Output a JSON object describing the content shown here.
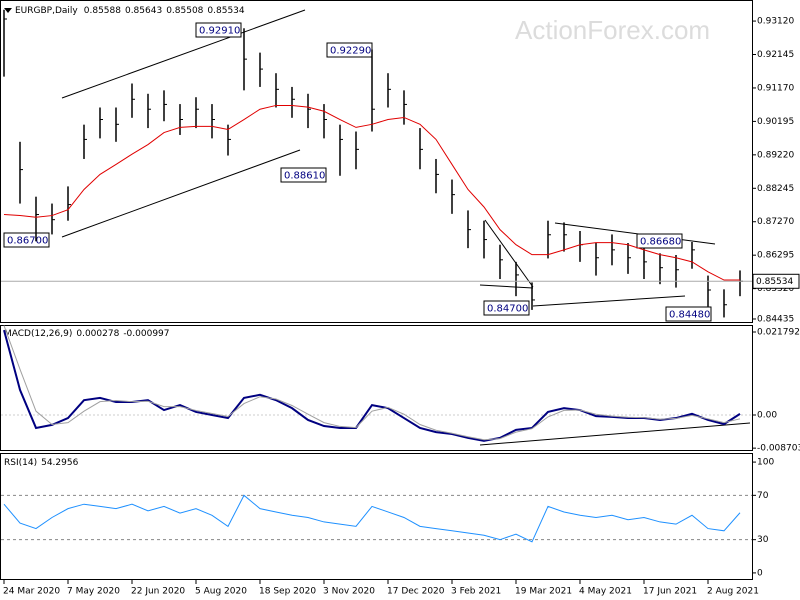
{
  "chart_data": [
    {
      "type": "ohlc",
      "title": "EURGBP,Daily",
      "last_bar": {
        "open": 0.85588,
        "high": 0.85643,
        "low": 0.85508,
        "close": 0.85534
      },
      "watermark": "ActionForex.com",
      "categories": [
        "24 Mar 2020",
        null,
        null,
        null,
        "7 May 2020",
        null,
        null,
        null,
        "22 Jun 2020",
        null,
        null,
        null,
        "5 Aug 2020",
        null,
        null,
        null,
        "18 Sep 2020",
        null,
        null,
        null,
        "3 Nov 2020",
        null,
        null,
        null,
        "17 Dec 2020",
        null,
        null,
        null,
        "3 Feb 2021",
        null,
        null,
        null,
        "19 Mar 2021",
        null,
        null,
        null,
        "4 May 2021",
        null,
        null,
        null,
        "17 Jun 2021",
        null,
        null,
        null,
        "2 Aug 2021",
        null,
        null
      ],
      "high": [
        0.9345,
        0.896,
        0.88,
        0.878,
        0.883,
        0.901,
        0.906,
        0.906,
        0.913,
        0.91,
        0.911,
        0.907,
        0.909,
        0.907,
        0.901,
        0.9291,
        0.922,
        0.916,
        0.912,
        0.91,
        0.907,
        0.901,
        0.899,
        0.9229,
        0.916,
        0.911,
        0.9,
        0.891,
        0.885,
        0.876,
        0.873,
        0.866,
        0.861,
        0.855,
        0.873,
        0.8725,
        0.87,
        0.8665,
        0.869,
        0.8665,
        0.865,
        0.8635,
        0.863,
        0.8668,
        0.857,
        0.853,
        0.8585
      ],
      "low": [
        0.915,
        0.878,
        0.867,
        0.869,
        0.873,
        0.891,
        0.897,
        0.896,
        0.903,
        0.9,
        0.902,
        0.898,
        0.9,
        0.897,
        0.892,
        0.911,
        0.912,
        0.906,
        0.903,
        0.9,
        0.897,
        0.8861,
        0.888,
        0.899,
        0.906,
        0.901,
        0.888,
        0.881,
        0.875,
        0.865,
        0.862,
        0.856,
        0.851,
        0.847,
        0.862,
        0.864,
        0.861,
        0.857,
        0.86,
        0.8575,
        0.856,
        0.8545,
        0.8535,
        0.859,
        0.848,
        0.8448,
        0.851
      ],
      "close": [
        0.9318,
        0.8879,
        0.8748,
        0.8733,
        0.8777,
        0.8967,
        0.9025,
        0.9011,
        0.9084,
        0.9055,
        0.9069,
        0.9025,
        0.9055,
        0.9025,
        0.8967,
        0.9201,
        0.9172,
        0.9113,
        0.9084,
        0.9055,
        0.9025,
        0.8967,
        0.8938,
        0.9055,
        0.9113,
        0.9069,
        0.8938,
        0.8865,
        0.8806,
        0.8704,
        0.8675,
        0.8616,
        0.8572,
        0.8499,
        0.8689,
        0.8689,
        0.866,
        0.8622,
        0.8645,
        0.8622,
        0.861,
        0.8593,
        0.8587,
        0.8645,
        0.8528,
        0.8485,
        0.85534
      ],
      "color": "#000000",
      "series": [
        {
          "color": "#e00000",
          "values": [
            0.8748,
            0.8745,
            0.874,
            0.8745,
            0.8762,
            0.8821,
            0.8865,
            0.8894,
            0.8924,
            0.8952,
            0.8987,
            0.9002,
            0.9005,
            0.9005,
            0.8996,
            0.9025,
            0.9055,
            0.9066,
            0.9066,
            0.9061,
            0.9049,
            0.9025,
            0.9002,
            0.9011,
            0.9025,
            0.9031,
            0.9011,
            0.8967,
            0.8894,
            0.8821,
            0.877,
            0.8704,
            0.866,
            0.8631,
            0.8631,
            0.8645,
            0.866,
            0.8666,
            0.8666,
            0.866,
            0.8645,
            0.8631,
            0.8622,
            0.861,
            0.8581,
            0.8557,
            0.8557
          ]
        }
      ],
      "annotations": [
        "0.92910",
        "0.92290",
        "0.88610",
        "0.86700",
        "0.84700",
        "0.86680",
        "0.84480"
      ],
      "ylim": [
        0.84347,
        0.93705
      ],
      "yticks": [
        {
          "value": 0.9312,
          "label": "0.93120"
        },
        {
          "value": 0.92145,
          "label": "0.92145"
        },
        {
          "value": 0.9117,
          "label": "0.91170"
        },
        {
          "value": 0.90195,
          "label": "0.90195"
        },
        {
          "value": 0.8922,
          "label": "0.89220"
        },
        {
          "value": 0.88245,
          "label": "0.88245"
        },
        {
          "value": 0.8727,
          "label": "0.87270"
        },
        {
          "value": 0.86295,
          "label": "0.86295"
        },
        {
          "value": 0.8532,
          "label": "0.85320"
        },
        {
          "value": 0.84435,
          "label": "0.84435"
        }
      ]
    },
    {
      "type": "line",
      "title": "MACD(12,26,9)",
      "macd_value": 0.000278,
      "signal_value": -0.000997,
      "series": [
        {
          "color": "#000080",
          "values": [
            0.0223,
            0.0066,
            -0.0034,
            -0.0026,
            -0.0008,
            0.0039,
            0.0045,
            0.0034,
            0.0034,
            0.0039,
            0.0013,
            0.0026,
            0.0008,
            0,
            -0.0008,
            0.0045,
            0.0053,
            0.0039,
            0.0018,
            -0.0013,
            -0.0029,
            -0.0034,
            -0.0034,
            0.0026,
            0.0018,
            -0.0008,
            -0.0034,
            -0.0045,
            -0.005,
            -0.006,
            -0.0068,
            -0.006,
            -0.0039,
            -0.0034,
            0.0008,
            0.0018,
            0.0013,
            -0.0003,
            -0.0005,
            -0.0008,
            -0.0008,
            -0.0013,
            -0.0008,
            0.0003,
            -0.0013,
            -0.0024,
            0.0003
          ]
        },
        {
          "color": "#a0a0a0",
          "values": [
            0.0235,
            0.012,
            0.001,
            -0.0025,
            -0.002,
            0.001,
            0.0035,
            0.0038,
            0.0035,
            0.0036,
            0.0022,
            0.0022,
            0.0012,
            0.0004,
            -0.0004,
            0.003,
            0.0048,
            0.0042,
            0.0025,
            0.0002,
            -0.002,
            -0.003,
            -0.0033,
            0.001,
            0.002,
            0.0002,
            -0.0025,
            -0.004,
            -0.0048,
            -0.0057,
            -0.0065,
            -0.0062,
            -0.0045,
            -0.0036,
            -0.0005,
            0.0012,
            0.0013,
            0.0002,
            -0.0003,
            -0.0006,
            -0.0007,
            -0.0011,
            -0.0009,
            -0.0001,
            -0.001,
            -0.002,
            -0.001
          ]
        }
      ],
      "ylim": [
        -0.00919,
        0.02337
      ],
      "yticks": [
        0.021792,
        {
          "value": 0,
          "label": "0.00"
        },
        -0.008703
      ]
    },
    {
      "type": "line",
      "title": "RSI(14)",
      "rsi_value": 54.2956,
      "series": [
        {
          "color": "#1e90ff",
          "values": [
            62,
            45,
            40,
            50,
            58,
            62,
            60,
            58,
            62,
            56,
            60,
            54,
            58,
            52,
            42,
            70,
            58,
            55,
            52,
            50,
            46,
            44,
            42,
            60,
            55,
            50,
            42,
            40,
            38,
            36,
            34,
            30,
            35,
            28,
            60,
            55,
            52,
            50,
            52,
            48,
            50,
            46,
            44,
            52,
            40,
            38,
            54.2956
          ]
        }
      ],
      "levels": [
        70,
        30
      ],
      "ylim": [
        -5.5,
        107.3
      ],
      "yticks": [
        100,
        70,
        30,
        0
      ]
    }
  ]
}
